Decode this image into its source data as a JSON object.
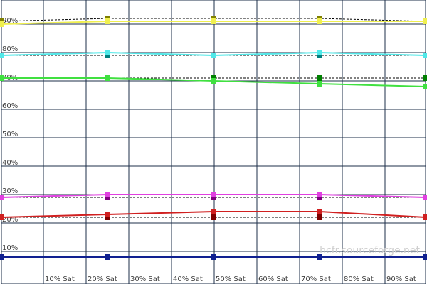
{
  "chart_data": {
    "type": "line",
    "x_tick_labels": [
      "10% Sat",
      "20% Sat",
      "30% Sat",
      "40% Sat",
      "50% Sat",
      "60% Sat",
      "70% Sat",
      "80% Sat",
      "90% Sat"
    ],
    "y_tick_labels": [
      "90%",
      "80%",
      "70%",
      "60%",
      "50%",
      "40%",
      "30%",
      "20%",
      "10%"
    ],
    "y_tick_values": [
      90,
      80,
      70,
      60,
      50,
      40,
      30,
      20,
      10
    ],
    "ylim": [
      1,
      100
    ],
    "grid": true,
    "watermark": "hcfr.sourceforge.net",
    "x": [
      0,
      25,
      50,
      75,
      100
    ],
    "series": [
      {
        "color": "#f0f050",
        "values": [
          90,
          91,
          91,
          91,
          91
        ]
      },
      {
        "color": "#50e8e8",
        "values": [
          79,
          80,
          79,
          80,
          79
        ]
      },
      {
        "color": "#40e040",
        "values": [
          71,
          71,
          70,
          69,
          68
        ]
      },
      {
        "color": "#e040e0",
        "values": [
          29,
          30,
          30,
          30,
          29
        ]
      },
      {
        "color": "#d02020",
        "values": [
          22,
          23,
          24,
          24,
          22
        ]
      },
      {
        "color": "#102090",
        "values": [
          8,
          8,
          8,
          8,
          8
        ]
      }
    ],
    "references": [
      {
        "color": "#808000",
        "values": [
          91,
          92,
          92,
          92,
          91
        ]
      },
      {
        "color": "#008080",
        "values": [
          79,
          79,
          79,
          79,
          79
        ]
      },
      {
        "color": "#008000",
        "values": [
          71,
          71,
          71,
          71,
          71
        ]
      },
      {
        "color": "#800080",
        "values": [
          29,
          29,
          29,
          29,
          29
        ]
      },
      {
        "color": "#800000",
        "values": [
          22,
          22,
          22,
          22,
          22
        ]
      },
      {
        "color": "#000080",
        "values": [
          8,
          8,
          8,
          8,
          8
        ]
      }
    ],
    "marker_positions": [
      0,
      25,
      50,
      75,
      100
    ]
  }
}
